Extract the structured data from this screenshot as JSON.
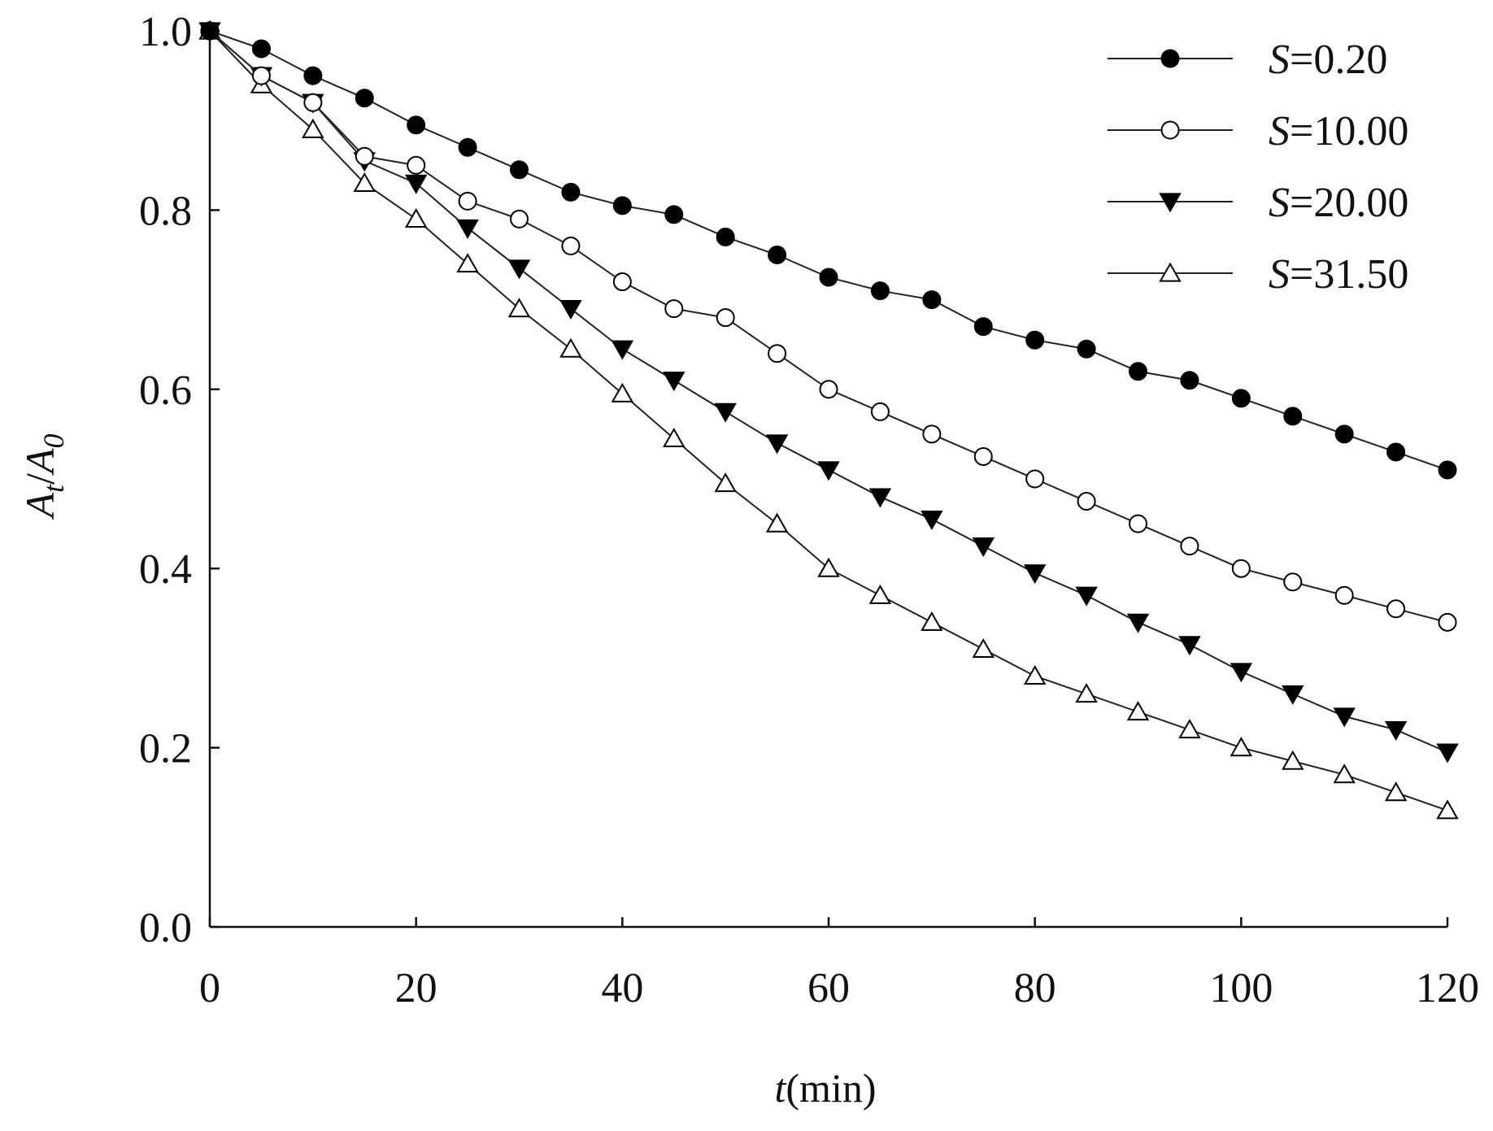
{
  "chart_data": {
    "type": "line",
    "title": "",
    "xlabel_italic": "t",
    "xlabel_rest": "(min)",
    "ylabel_main_1": "A",
    "ylabel_sub_1": "t",
    "ylabel_slash": "/",
    "ylabel_main_2": "A",
    "ylabel_sub_2": "0",
    "xlim": [
      0,
      120
    ],
    "ylim": [
      0,
      1.0
    ],
    "xticks": [
      0,
      20,
      40,
      60,
      80,
      100,
      120
    ],
    "xtick_labels": [
      "0",
      "20",
      "40",
      "60",
      "80",
      "100",
      "120"
    ],
    "yticks": [
      0,
      0.2,
      0.4,
      0.6,
      0.8,
      1.0
    ],
    "ytick_labels": [
      "0.0",
      "0.2",
      "0.4",
      "0.6",
      "0.8",
      "1.0"
    ],
    "grid": false,
    "legend_position": "top-right",
    "x": [
      0,
      5,
      10,
      15,
      20,
      25,
      30,
      35,
      40,
      45,
      50,
      55,
      60,
      65,
      70,
      75,
      80,
      85,
      90,
      95,
      100,
      105,
      110,
      115,
      120
    ],
    "series": [
      {
        "name": "S=0.20",
        "name_italic": "S",
        "name_rest": "=0.20",
        "marker": "filled-circle",
        "values": [
          1.0,
          0.98,
          0.95,
          0.925,
          0.895,
          0.87,
          0.845,
          0.82,
          0.805,
          0.795,
          0.77,
          0.75,
          0.725,
          0.71,
          0.7,
          0.67,
          0.655,
          0.645,
          0.62,
          0.61,
          0.59,
          0.57,
          0.55,
          0.53,
          0.51
        ]
      },
      {
        "name": "S=10.00",
        "name_italic": "S",
        "name_rest": "=10.00",
        "marker": "open-circle",
        "values": [
          1.0,
          0.95,
          0.92,
          0.86,
          0.85,
          0.81,
          0.79,
          0.76,
          0.72,
          0.69,
          0.68,
          0.64,
          0.6,
          0.575,
          0.55,
          0.525,
          0.5,
          0.475,
          0.45,
          0.425,
          0.4,
          0.385,
          0.37,
          0.355,
          0.34
        ]
      },
      {
        "name": "S=20.00",
        "name_italic": "S",
        "name_rest": "=20.00",
        "marker": "filled-triangle-down",
        "values": [
          1.0,
          0.95,
          0.92,
          0.855,
          0.83,
          0.78,
          0.735,
          0.69,
          0.645,
          0.61,
          0.575,
          0.54,
          0.51,
          0.48,
          0.455,
          0.425,
          0.395,
          0.37,
          0.34,
          0.315,
          0.285,
          0.26,
          0.235,
          0.22,
          0.195
        ]
      },
      {
        "name": "S=31.50",
        "name_italic": "S",
        "name_rest": "=31.50",
        "marker": "open-triangle-up",
        "values": [
          1.0,
          0.94,
          0.89,
          0.83,
          0.79,
          0.74,
          0.69,
          0.645,
          0.595,
          0.545,
          0.495,
          0.45,
          0.4,
          0.37,
          0.34,
          0.31,
          0.28,
          0.26,
          0.24,
          0.22,
          0.2,
          0.185,
          0.17,
          0.15,
          0.13
        ]
      }
    ]
  }
}
